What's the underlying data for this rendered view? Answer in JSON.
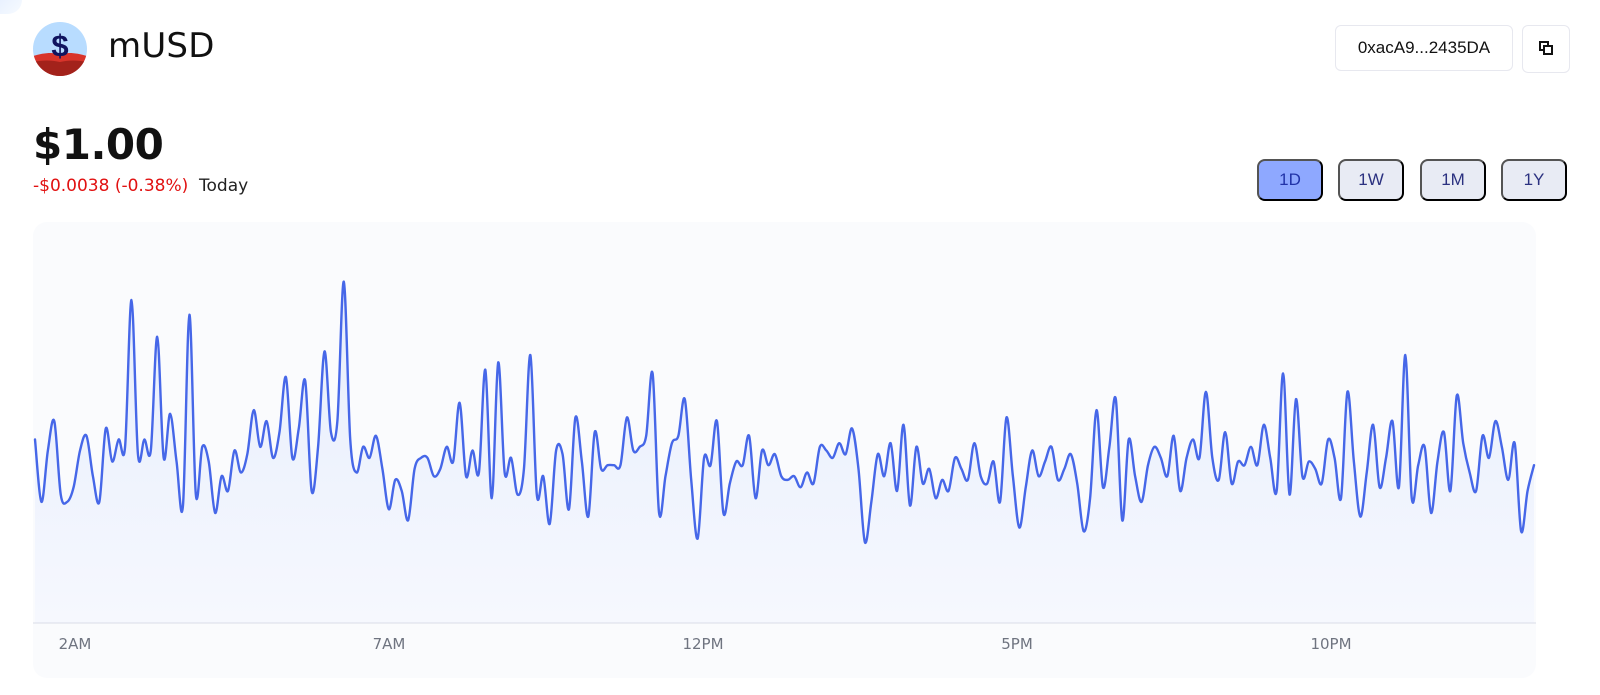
{
  "token": {
    "name": "mUSD",
    "logo_icon": "musd-dollar-logo",
    "address": "0xacA9...2435DA",
    "copy_icon": "copy-icon"
  },
  "price": {
    "value": "$1.00",
    "change": "-$0.0038 (-0.38%)",
    "period": "Today"
  },
  "ranges": [
    {
      "label": "1D",
      "active": true
    },
    {
      "label": "1W",
      "active": false
    },
    {
      "label": "1M",
      "active": false
    },
    {
      "label": "1Y",
      "active": false
    }
  ],
  "colors": {
    "line": "#4667e8",
    "area": "#eaf0fc",
    "negative": "#e11111",
    "active_range": "#8ea8ff"
  },
  "chart_data": {
    "type": "line",
    "x_ticks": [
      "2AM",
      "7AM",
      "12PM",
      "5PM",
      "10PM"
    ],
    "y": [
      0.5,
      0.33,
      0.47,
      0.55,
      0.35,
      0.33,
      0.37,
      0.47,
      0.51,
      0.4,
      0.33,
      0.53,
      0.44,
      0.5,
      0.48,
      0.88,
      0.46,
      0.5,
      0.47,
      0.78,
      0.45,
      0.57,
      0.44,
      0.32,
      0.84,
      0.35,
      0.48,
      0.44,
      0.3,
      0.4,
      0.36,
      0.47,
      0.41,
      0.46,
      0.58,
      0.48,
      0.55,
      0.45,
      0.52,
      0.67,
      0.45,
      0.53,
      0.66,
      0.36,
      0.48,
      0.74,
      0.52,
      0.55,
      0.93,
      0.5,
      0.41,
      0.48,
      0.45,
      0.51,
      0.42,
      0.31,
      0.39,
      0.36,
      0.28,
      0.42,
      0.45,
      0.45,
      0.4,
      0.42,
      0.48,
      0.44,
      0.6,
      0.4,
      0.47,
      0.41,
      0.69,
      0.34,
      0.71,
      0.41,
      0.45,
      0.35,
      0.42,
      0.73,
      0.35,
      0.4,
      0.27,
      0.47,
      0.46,
      0.31,
      0.56,
      0.44,
      0.29,
      0.52,
      0.42,
      0.43,
      0.43,
      0.43,
      0.56,
      0.47,
      0.48,
      0.51,
      0.68,
      0.3,
      0.4,
      0.49,
      0.51,
      0.61,
      0.39,
      0.23,
      0.45,
      0.43,
      0.55,
      0.3,
      0.38,
      0.44,
      0.43,
      0.51,
      0.34,
      0.47,
      0.43,
      0.46,
      0.4,
      0.39,
      0.4,
      0.37,
      0.41,
      0.38,
      0.48,
      0.47,
      0.45,
      0.49,
      0.46,
      0.53,
      0.42,
      0.22,
      0.33,
      0.46,
      0.4,
      0.49,
      0.36,
      0.54,
      0.32,
      0.48,
      0.38,
      0.42,
      0.34,
      0.39,
      0.36,
      0.45,
      0.42,
      0.39,
      0.49,
      0.4,
      0.38,
      0.44,
      0.33,
      0.56,
      0.4,
      0.26,
      0.37,
      0.47,
      0.4,
      0.44,
      0.48,
      0.39,
      0.42,
      0.46,
      0.38,
      0.25,
      0.34,
      0.58,
      0.37,
      0.48,
      0.61,
      0.28,
      0.5,
      0.4,
      0.33,
      0.43,
      0.48,
      0.45,
      0.4,
      0.51,
      0.36,
      0.45,
      0.5,
      0.45,
      0.63,
      0.45,
      0.39,
      0.52,
      0.38,
      0.44,
      0.43,
      0.48,
      0.43,
      0.54,
      0.45,
      0.36,
      0.68,
      0.35,
      0.61,
      0.4,
      0.44,
      0.42,
      0.38,
      0.5,
      0.45,
      0.34,
      0.63,
      0.44,
      0.29,
      0.41,
      0.54,
      0.37,
      0.45,
      0.55,
      0.37,
      0.73,
      0.34,
      0.43,
      0.48,
      0.3,
      0.44,
      0.52,
      0.36,
      0.62,
      0.49,
      0.41,
      0.36,
      0.51,
      0.45,
      0.55,
      0.48,
      0.39,
      0.49,
      0.25,
      0.36,
      0.43
    ],
    "ylim": [
      0,
      1
    ],
    "grid": false
  }
}
